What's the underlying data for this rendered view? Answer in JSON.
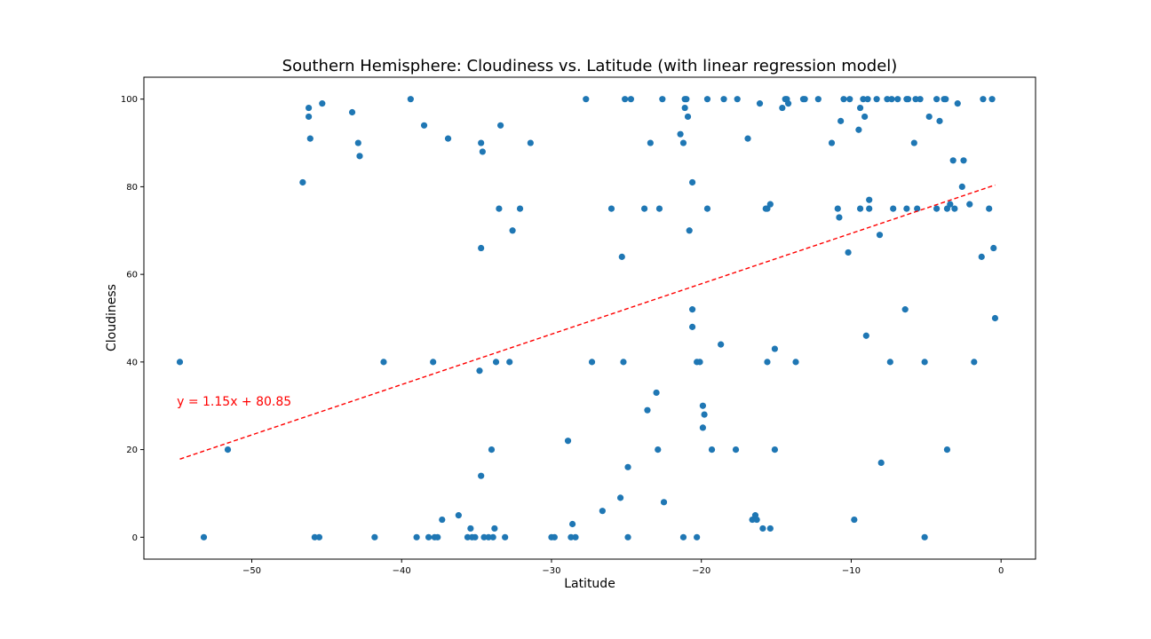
{
  "chart_data": {
    "type": "scatter",
    "title": "Southern Hemisphere:  Cloudiness vs. Latitude (with linear regression model)",
    "xlabel": "Latitude",
    "ylabel": "Cloudiness",
    "xlim": [
      -57.2,
      2.3
    ],
    "ylim": [
      -5,
      105
    ],
    "xticks": [
      -50,
      -40,
      -30,
      -20,
      -10,
      0
    ],
    "yticks": [
      0,
      20,
      40,
      60,
      80,
      100
    ],
    "grid": false,
    "point_color": "#1f77b4",
    "regression": {
      "slope": 1.15,
      "intercept": 80.85,
      "x_range": [
        -54.8,
        -0.4
      ],
      "color": "#ff0000",
      "style": "dashed",
      "equation": "y = 1.15x + 80.85",
      "equation_at": [
        -55,
        30
      ]
    },
    "points": [
      [
        -54.8,
        40
      ],
      [
        -53.2,
        0
      ],
      [
        -51.6,
        20
      ],
      [
        -46.6,
        81
      ],
      [
        -46.2,
        98
      ],
      [
        -46.2,
        96
      ],
      [
        -46.1,
        91
      ],
      [
        -45.8,
        0
      ],
      [
        -45.5,
        0
      ],
      [
        -45.3,
        99
      ],
      [
        -43.3,
        97
      ],
      [
        -42.9,
        90
      ],
      [
        -42.8,
        87
      ],
      [
        -41.8,
        0
      ],
      [
        -41.2,
        40
      ],
      [
        -39.4,
        100
      ],
      [
        -39.0,
        0
      ],
      [
        -38.5,
        94
      ],
      [
        -38.2,
        0
      ],
      [
        -37.9,
        40
      ],
      [
        -37.8,
        0
      ],
      [
        -37.6,
        0
      ],
      [
        -37.3,
        4
      ],
      [
        -36.9,
        91
      ],
      [
        -36.2,
        5
      ],
      [
        -35.6,
        0
      ],
      [
        -35.4,
        2
      ],
      [
        -35.3,
        0
      ],
      [
        -35.1,
        0
      ],
      [
        -34.8,
        38
      ],
      [
        -34.7,
        14
      ],
      [
        -34.7,
        66
      ],
      [
        -34.6,
        88
      ],
      [
        -34.7,
        90
      ],
      [
        -34.5,
        0
      ],
      [
        -34.2,
        0
      ],
      [
        -34.0,
        20
      ],
      [
        -33.9,
        0
      ],
      [
        -33.8,
        2
      ],
      [
        -33.7,
        40
      ],
      [
        -33.5,
        75
      ],
      [
        -33.4,
        94
      ],
      [
        -33.1,
        0
      ],
      [
        -32.8,
        40
      ],
      [
        -32.6,
        70
      ],
      [
        -32.1,
        75
      ],
      [
        -31.4,
        90
      ],
      [
        -30.0,
        0
      ],
      [
        -29.8,
        0
      ],
      [
        -28.9,
        22
      ],
      [
        -28.7,
        0
      ],
      [
        -28.6,
        3
      ],
      [
        -28.4,
        0
      ],
      [
        -27.7,
        100
      ],
      [
        -27.3,
        40
      ],
      [
        -26.6,
        6
      ],
      [
        -26.0,
        75
      ],
      [
        -25.4,
        9
      ],
      [
        -25.3,
        64
      ],
      [
        -25.2,
        40
      ],
      [
        -25.1,
        100
      ],
      [
        -24.9,
        0
      ],
      [
        -24.9,
        16
      ],
      [
        -24.7,
        100
      ],
      [
        -23.8,
        75
      ],
      [
        -23.6,
        29
      ],
      [
        -23.4,
        90
      ],
      [
        -23.0,
        33
      ],
      [
        -22.9,
        20
      ],
      [
        -22.8,
        75
      ],
      [
        -22.6,
        100
      ],
      [
        -22.5,
        8
      ],
      [
        -21.4,
        92
      ],
      [
        -21.2,
        0
      ],
      [
        -21.2,
        90
      ],
      [
        -21.1,
        98
      ],
      [
        -21.1,
        100
      ],
      [
        -21.0,
        100
      ],
      [
        -20.9,
        96
      ],
      [
        -20.8,
        70
      ],
      [
        -20.6,
        81
      ],
      [
        -20.6,
        52
      ],
      [
        -20.6,
        48
      ],
      [
        -20.3,
        40
      ],
      [
        -20.3,
        0
      ],
      [
        -20.1,
        40
      ],
      [
        -19.9,
        25
      ],
      [
        -19.9,
        30
      ],
      [
        -19.8,
        28
      ],
      [
        -19.6,
        100
      ],
      [
        -19.6,
        75
      ],
      [
        -19.3,
        20
      ],
      [
        -18.7,
        44
      ],
      [
        -18.5,
        100
      ],
      [
        -17.7,
        20
      ],
      [
        -17.6,
        100
      ],
      [
        -16.9,
        91
      ],
      [
        -16.6,
        4
      ],
      [
        -16.4,
        5
      ],
      [
        -16.3,
        4
      ],
      [
        -16.1,
        99
      ],
      [
        -15.9,
        2
      ],
      [
        -15.7,
        75
      ],
      [
        -15.6,
        75
      ],
      [
        -15.6,
        40
      ],
      [
        -15.4,
        76
      ],
      [
        -15.4,
        2
      ],
      [
        -15.1,
        20
      ],
      [
        -15.1,
        43
      ],
      [
        -14.6,
        98
      ],
      [
        -14.4,
        100
      ],
      [
        -14.3,
        100
      ],
      [
        -14.2,
        99
      ],
      [
        -13.7,
        40
      ],
      [
        -13.2,
        100
      ],
      [
        -13.1,
        100
      ],
      [
        -12.2,
        100
      ],
      [
        -11.3,
        90
      ],
      [
        -10.9,
        75
      ],
      [
        -10.8,
        73
      ],
      [
        -10.7,
        95
      ],
      [
        -10.5,
        100
      ],
      [
        -10.2,
        65
      ],
      [
        -10.1,
        100
      ],
      [
        -9.8,
        4
      ],
      [
        -9.5,
        93
      ],
      [
        -9.4,
        75
      ],
      [
        -9.4,
        98
      ],
      [
        -9.2,
        100
      ],
      [
        -9.1,
        96
      ],
      [
        -9.0,
        46
      ],
      [
        -8.9,
        100
      ],
      [
        -8.8,
        77
      ],
      [
        -8.8,
        75
      ],
      [
        -8.3,
        100
      ],
      [
        -8.1,
        69
      ],
      [
        -8.0,
        17
      ],
      [
        -7.6,
        100
      ],
      [
        -7.4,
        40
      ],
      [
        -7.3,
        100
      ],
      [
        -7.2,
        75
      ],
      [
        -6.9,
        100
      ],
      [
        -6.4,
        52
      ],
      [
        -6.3,
        75
      ],
      [
        -6.3,
        100
      ],
      [
        -6.2,
        100
      ],
      [
        -5.8,
        90
      ],
      [
        -5.7,
        100
      ],
      [
        -5.6,
        75
      ],
      [
        -5.4,
        100
      ],
      [
        -5.1,
        40
      ],
      [
        -5.1,
        0
      ],
      [
        -4.8,
        96
      ],
      [
        -4.3,
        100
      ],
      [
        -4.3,
        75
      ],
      [
        -4.1,
        95
      ],
      [
        -3.8,
        100
      ],
      [
        -3.7,
        100
      ],
      [
        -3.6,
        75
      ],
      [
        -3.6,
        20
      ],
      [
        -3.4,
        76
      ],
      [
        -3.2,
        86
      ],
      [
        -3.1,
        75
      ],
      [
        -2.9,
        99
      ],
      [
        -2.6,
        80
      ],
      [
        -2.5,
        86
      ],
      [
        -2.1,
        76
      ],
      [
        -1.8,
        40
      ],
      [
        -1.3,
        64
      ],
      [
        -1.2,
        100
      ],
      [
        -0.8,
        75
      ],
      [
        -0.6,
        100
      ],
      [
        -0.5,
        66
      ],
      [
        -0.4,
        50
      ]
    ]
  }
}
